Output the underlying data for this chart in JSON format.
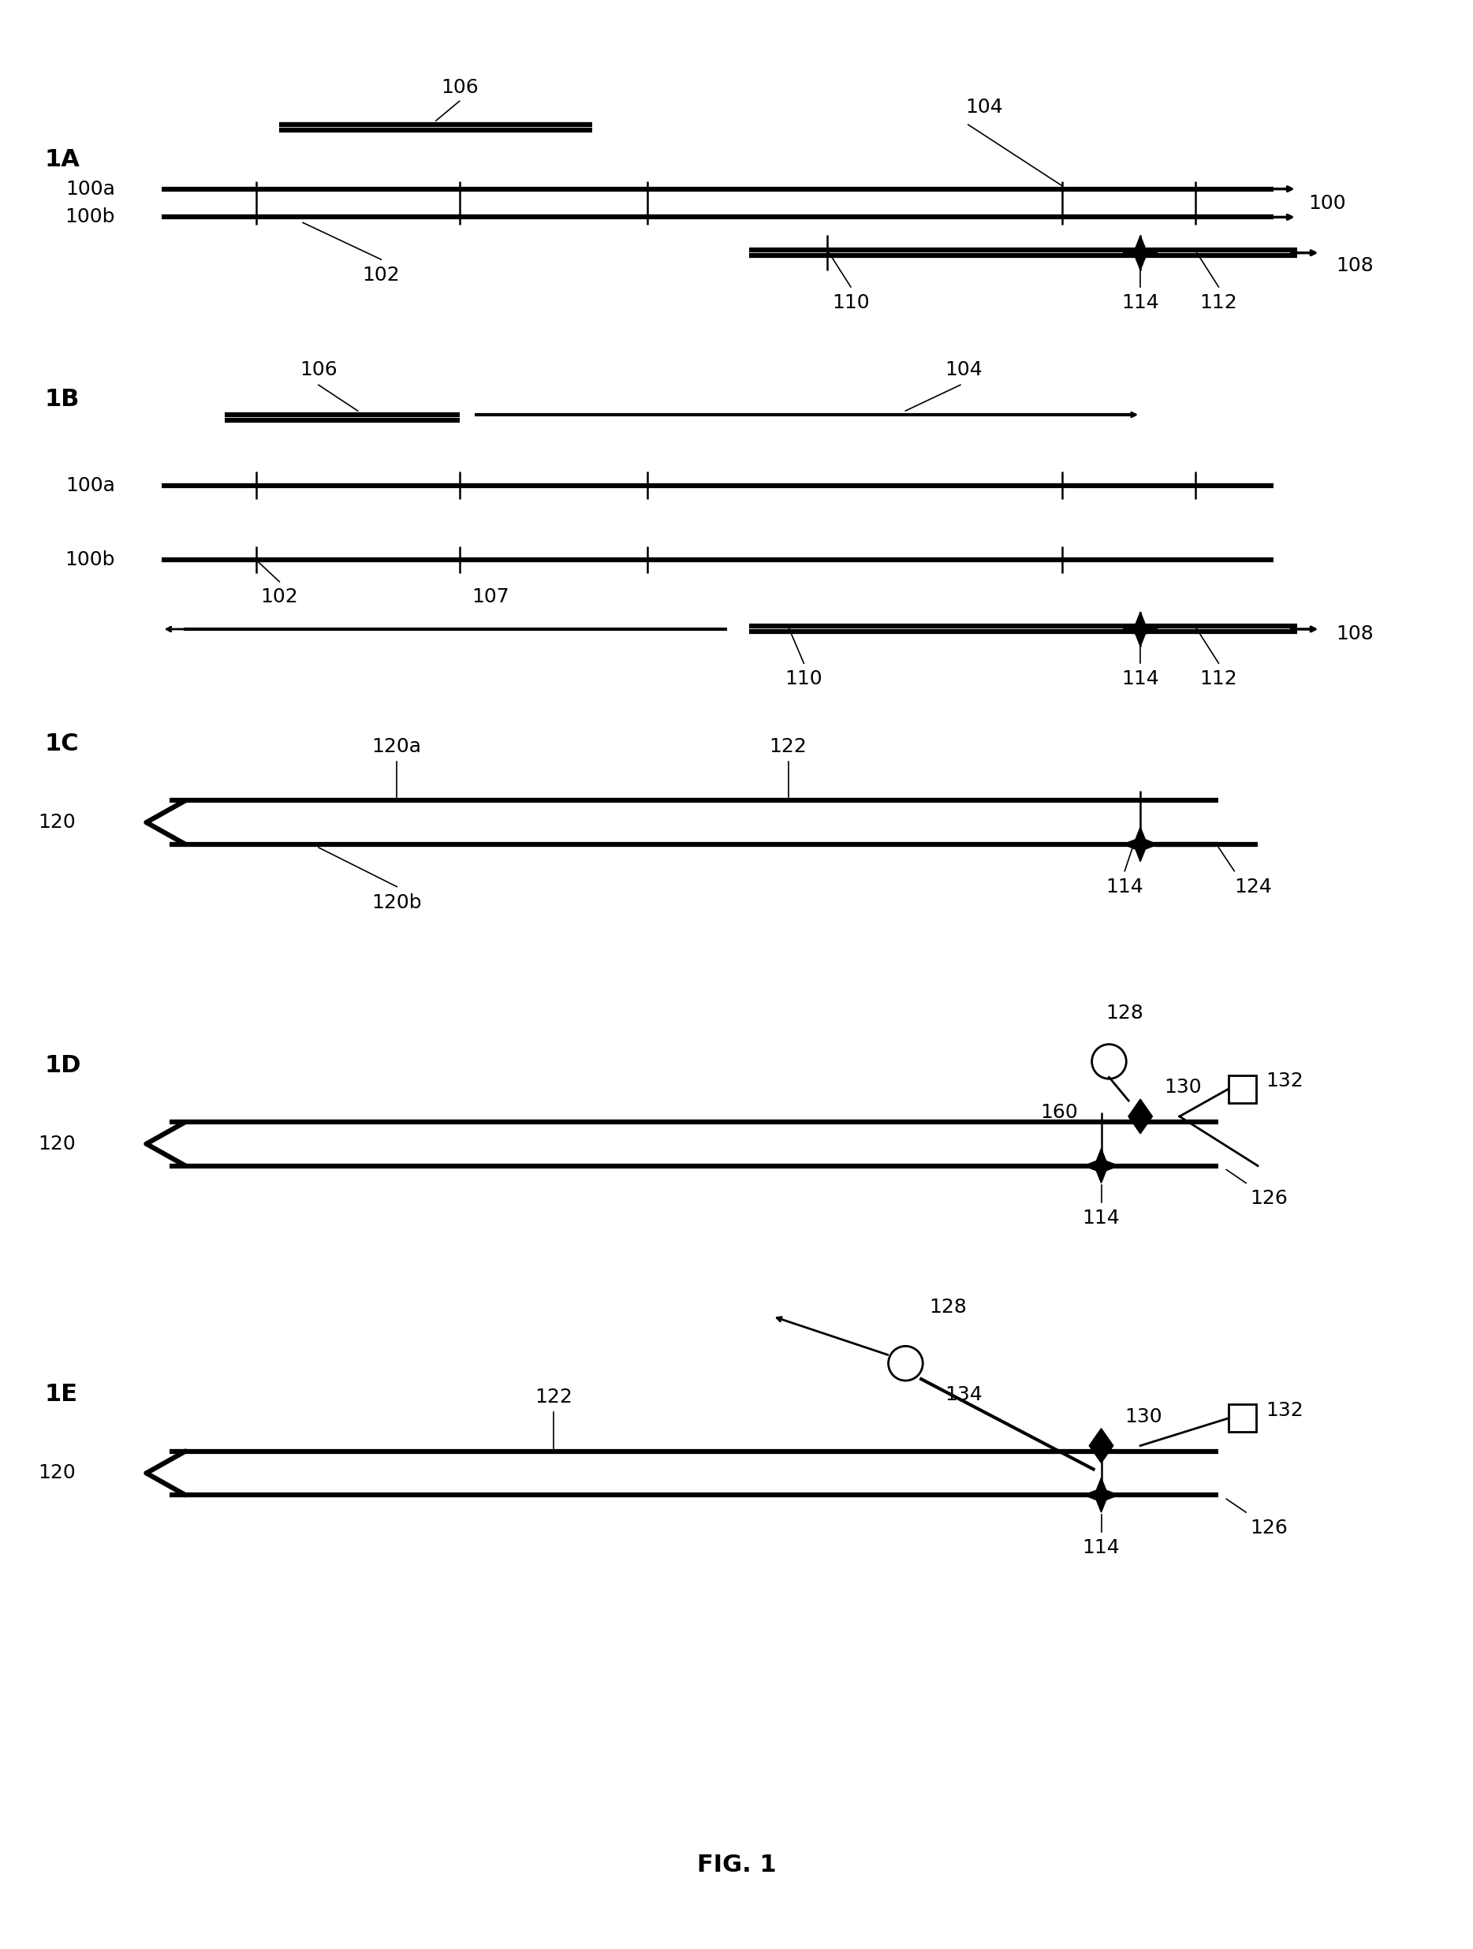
{
  "background_color": "#ffffff",
  "fig_width": 18.68,
  "fig_height": 24.72,
  "label_fontsize": 18,
  "section_fontsize": 22,
  "caption": "FIG. 1",
  "panels": [
    "1A",
    "1B",
    "1C",
    "1D",
    "1E"
  ]
}
